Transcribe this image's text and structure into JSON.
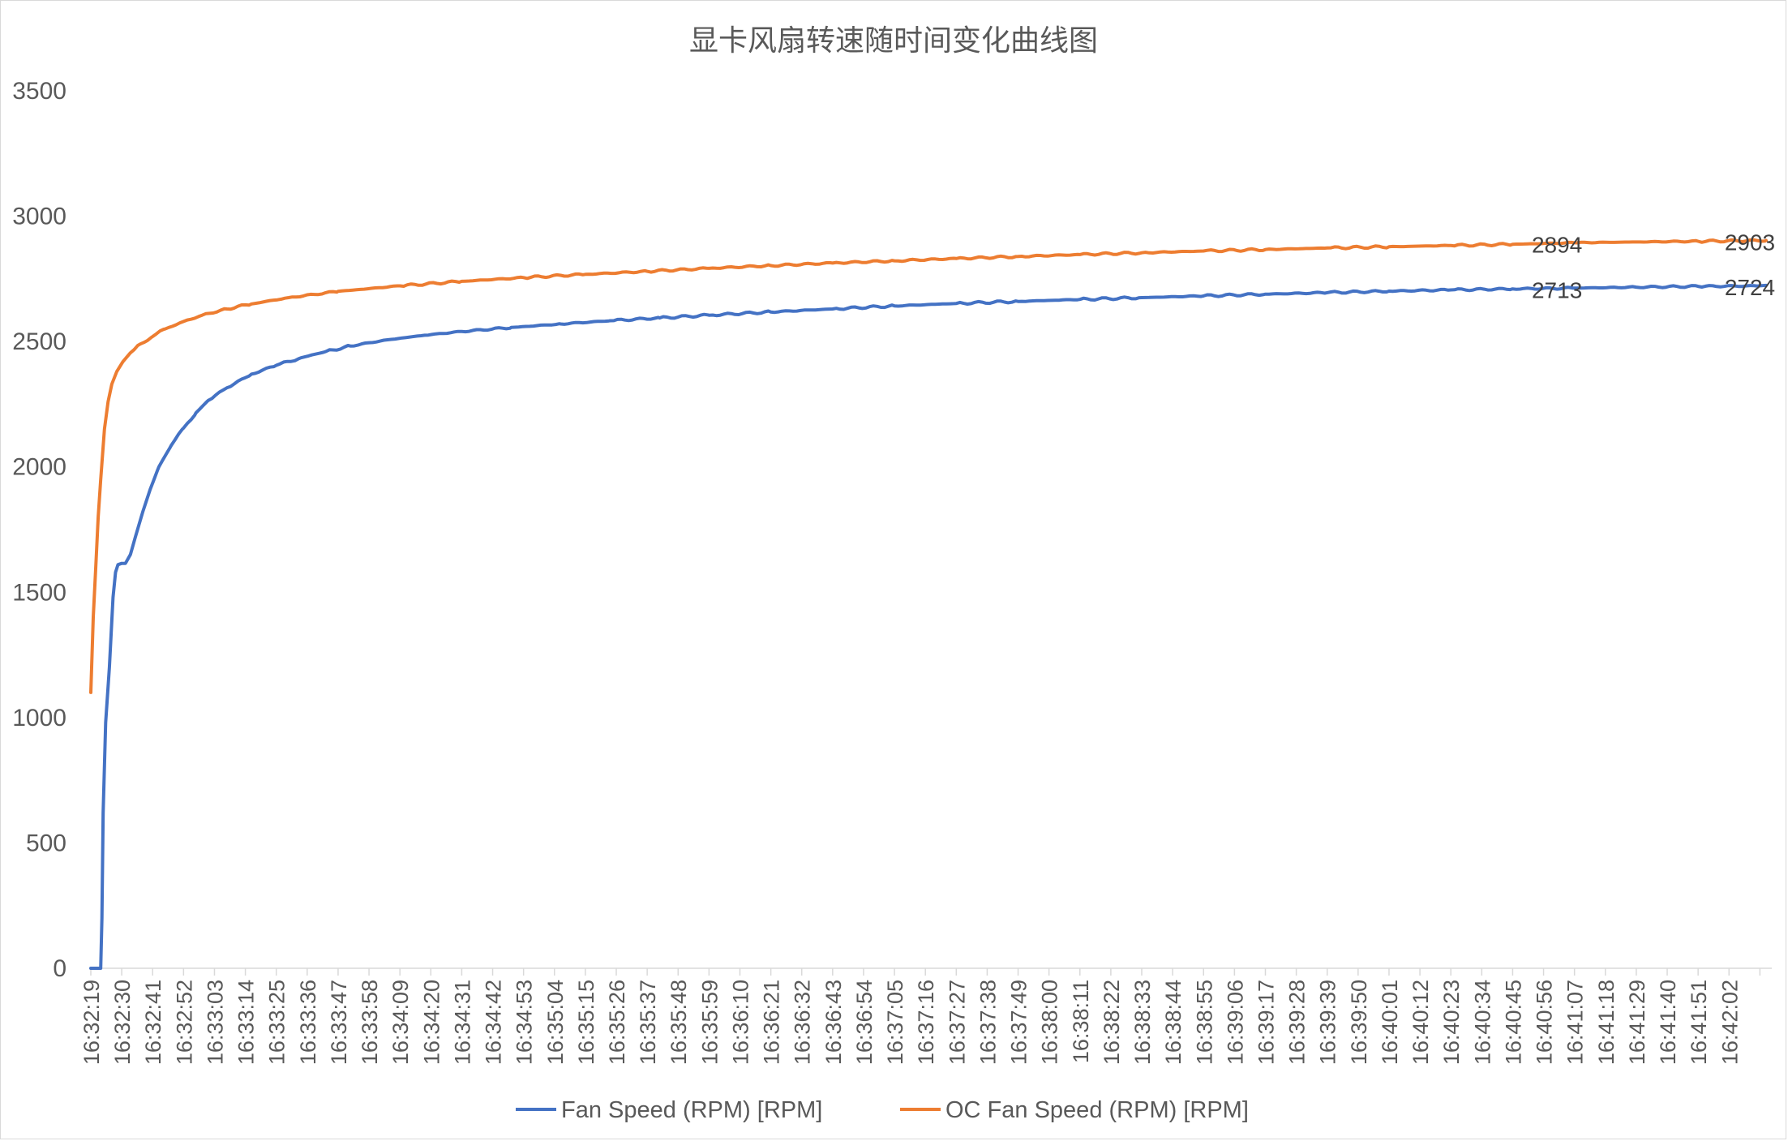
{
  "chart_data": {
    "type": "line",
    "title": "显卡风扇转速随时间变化曲线图",
    "xlabel": "",
    "ylabel": "",
    "ylim": [
      0,
      3500
    ],
    "yticks": [
      0,
      500,
      1000,
      1500,
      2000,
      2500,
      3000,
      3500
    ],
    "grid": false,
    "legend_position": "bottom",
    "x_tick_labels": [
      "16:32:19",
      "16:32:30",
      "16:32:41",
      "16:32:52",
      "16:33:03",
      "16:33:14",
      "16:33:25",
      "16:33:36",
      "16:33:47",
      "16:33:58",
      "16:34:09",
      "16:34:20",
      "16:34:31",
      "16:34:42",
      "16:34:53",
      "16:35:04",
      "16:35:15",
      "16:35:26",
      "16:35:37",
      "16:35:48",
      "16:35:59",
      "16:36:10",
      "16:36:21",
      "16:36:32",
      "16:36:43",
      "16:36:54",
      "16:37:05",
      "16:37:16",
      "16:37:27",
      "16:37:38",
      "16:37:49",
      "16:38:00",
      "16:38:11",
      "16:38:22",
      "16:38:33",
      "16:38:44",
      "16:38:55",
      "16:39:06",
      "16:39:17",
      "16:39:28",
      "16:39:39",
      "16:39:50",
      "16:40:01",
      "16:40:12",
      "16:40:23",
      "16:40:34",
      "16:40:45",
      "16:40:56",
      "16:41:07",
      "16:41:18",
      "16:41:29",
      "16:41:40",
      "16:41:51",
      "16:42:02"
    ],
    "series": [
      {
        "name": "Fan Speed (RPM) [RPM]",
        "color": "#4472C4",
        "points": [
          [
            0,
            0
          ],
          [
            8,
            0
          ],
          [
            9,
            200
          ],
          [
            10,
            620
          ],
          [
            12,
            980
          ],
          [
            15,
            1200
          ],
          [
            18,
            1480
          ],
          [
            20,
            1580
          ],
          [
            22,
            1610
          ],
          [
            25,
            1615
          ],
          [
            28,
            1615
          ],
          [
            32,
            1650
          ],
          [
            36,
            1720
          ],
          [
            42,
            1820
          ],
          [
            48,
            1910
          ],
          [
            55,
            2000
          ],
          [
            65,
            2085
          ],
          [
            75,
            2155
          ],
          [
            85,
            2215
          ],
          [
            95,
            2265
          ],
          [
            110,
            2315
          ],
          [
            130,
            2370
          ],
          [
            150,
            2405
          ],
          [
            170,
            2435
          ],
          [
            190,
            2460
          ],
          [
            210,
            2482
          ],
          [
            240,
            2507
          ],
          [
            270,
            2525
          ],
          [
            300,
            2540
          ],
          [
            340,
            2556
          ],
          [
            380,
            2570
          ],
          [
            420,
            2583
          ],
          [
            460,
            2594
          ],
          [
            500,
            2605
          ],
          [
            550,
            2618
          ],
          [
            600,
            2630
          ],
          [
            650,
            2642
          ],
          [
            700,
            2652
          ],
          [
            750,
            2660
          ],
          [
            800,
            2668
          ],
          [
            850,
            2675
          ],
          [
            900,
            2682
          ],
          [
            950,
            2689
          ],
          [
            1000,
            2695
          ],
          [
            1050,
            2701
          ],
          [
            1100,
            2706
          ],
          [
            1150,
            2710
          ],
          [
            1199,
            2713
          ],
          [
            1250,
            2717
          ],
          [
            1300,
            2720
          ],
          [
            1349,
            2722
          ],
          [
            1355,
            2724
          ]
        ],
        "labels": [
          {
            "index": 1199,
            "value": 2713
          },
          {
            "index": 1355,
            "value": 2724
          }
        ]
      },
      {
        "name": "OC  Fan Speed (RPM) [RPM]",
        "color": "#ED7D31",
        "points": [
          [
            0,
            1100
          ],
          [
            2,
            1400
          ],
          [
            4,
            1600
          ],
          [
            6,
            1800
          ],
          [
            8,
            1950
          ],
          [
            11,
            2150
          ],
          [
            14,
            2260
          ],
          [
            17,
            2330
          ],
          [
            21,
            2380
          ],
          [
            26,
            2420
          ],
          [
            32,
            2455
          ],
          [
            40,
            2490
          ],
          [
            50,
            2520
          ],
          [
            60,
            2550
          ],
          [
            75,
            2580
          ],
          [
            90,
            2605
          ],
          [
            110,
            2630
          ],
          [
            130,
            2650
          ],
          [
            160,
            2675
          ],
          [
            200,
            2700
          ],
          [
            250,
            2722
          ],
          [
            300,
            2740
          ],
          [
            350,
            2755
          ],
          [
            400,
            2768
          ],
          [
            450,
            2780
          ],
          [
            500,
            2792
          ],
          [
            550,
            2803
          ],
          [
            600,
            2813
          ],
          [
            650,
            2822
          ],
          [
            700,
            2831
          ],
          [
            750,
            2839
          ],
          [
            800,
            2847
          ],
          [
            850,
            2854
          ],
          [
            900,
            2861
          ],
          [
            950,
            2867
          ],
          [
            1000,
            2873
          ],
          [
            1050,
            2878
          ],
          [
            1100,
            2883
          ],
          [
            1150,
            2888
          ],
          [
            1199,
            2894
          ],
          [
            1250,
            2897
          ],
          [
            1300,
            2900
          ],
          [
            1355,
            2903
          ]
        ],
        "labels": [
          {
            "index": 1199,
            "value": 2894
          },
          {
            "index": 1355,
            "value": 2903
          }
        ]
      }
    ],
    "x_index_max": 1355,
    "tick_step": 25
  }
}
